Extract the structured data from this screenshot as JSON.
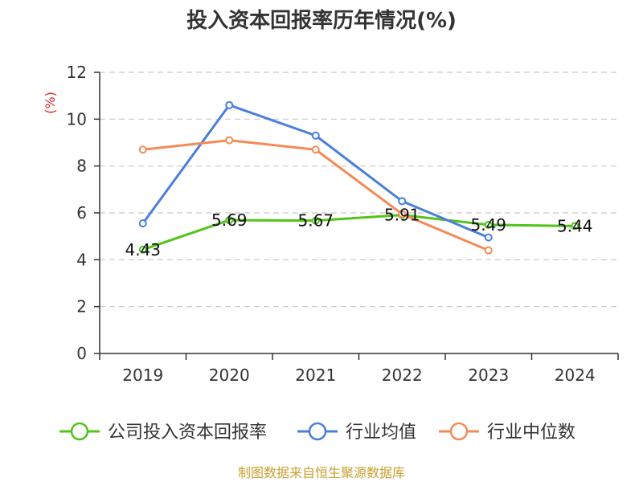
{
  "chart_data": {
    "type": "line",
    "title": "投入资本回报率历年情况(%)",
    "xlabel": "",
    "ylabel": "(%)",
    "categories": [
      "2019",
      "2020",
      "2021",
      "2022",
      "2023",
      "2024"
    ],
    "ylim": [
      0,
      12
    ],
    "yticks": [
      0,
      2,
      4,
      6,
      8,
      10,
      12
    ],
    "grid": true,
    "legend_position": "bottom",
    "series": [
      {
        "name": "公司投入资本回报率",
        "color": "#52c41a",
        "values": [
          4.43,
          5.69,
          5.67,
          5.91,
          5.49,
          5.44
        ],
        "labels": [
          "4.43",
          "5.69",
          "5.67",
          "5.91",
          "5.49",
          "5.44"
        ],
        "show_labels": true
      },
      {
        "name": "行业均值",
        "color": "#4a7fdc",
        "values": [
          5.55,
          10.6,
          9.3,
          6.5,
          4.95,
          null
        ],
        "show_labels": false
      },
      {
        "name": "行业中位数",
        "color": "#f58a55",
        "values": [
          8.7,
          9.1,
          8.7,
          5.95,
          4.4,
          null
        ],
        "show_labels": false
      }
    ]
  },
  "footer": {
    "source": "制图数据来自恒生聚源数据库"
  }
}
